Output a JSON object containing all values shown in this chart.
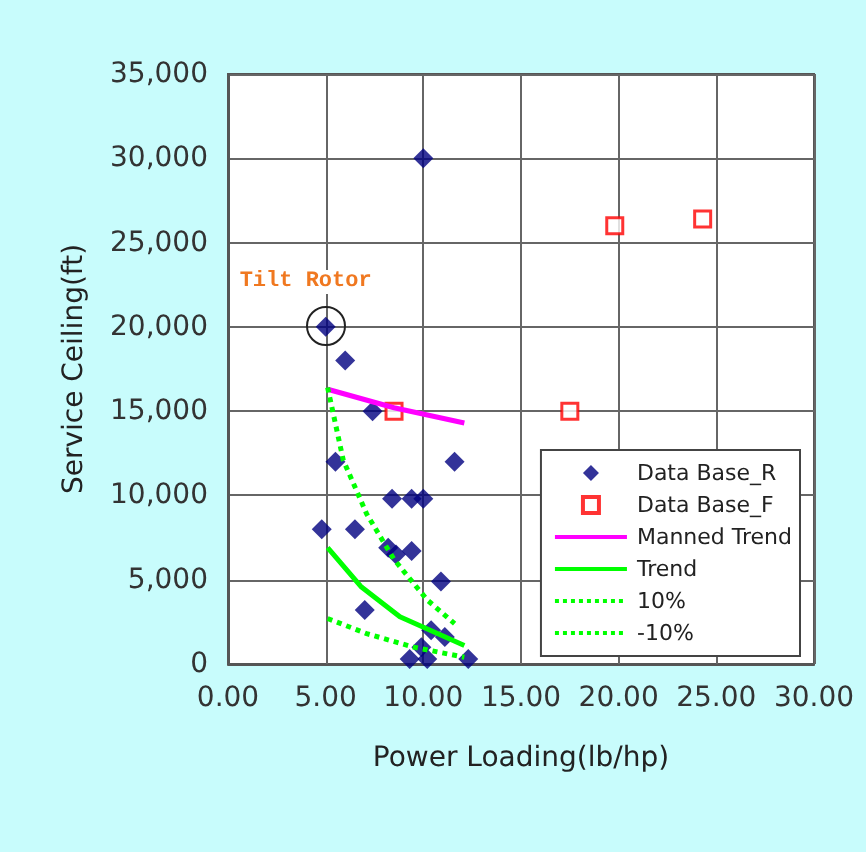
{
  "chart_data": {
    "type": "scatter",
    "xlabel": "Power Loading(lb/hp)",
    "ylabel": "Service Ceiling(ft)",
    "xlim": [
      0,
      30
    ],
    "xticks": [
      {
        "value": 0,
        "label": "0.00"
      },
      {
        "value": 5,
        "label": "5.00"
      },
      {
        "value": 10,
        "label": "10.00"
      },
      {
        "value": 15,
        "label": "15.00"
      },
      {
        "value": 20,
        "label": "20.00"
      },
      {
        "value": 25,
        "label": "25.00"
      },
      {
        "value": 30,
        "label": "30.00"
      }
    ],
    "ylim": [
      0,
      35000
    ],
    "yticks": [
      {
        "value": 0,
        "label": "0"
      },
      {
        "value": 5000,
        "label": "5,000"
      },
      {
        "value": 10000,
        "label": "10,000"
      },
      {
        "value": 15000,
        "label": "15,000"
      },
      {
        "value": 20000,
        "label": "20,000"
      },
      {
        "value": 25000,
        "label": "25,000"
      },
      {
        "value": 30000,
        "label": "30,000"
      },
      {
        "value": 35000,
        "label": "35,000"
      }
    ],
    "grid": true,
    "legend": "bottom right",
    "series": [
      {
        "name": "Data Base_R",
        "marker": "diamond",
        "color": "#000080",
        "x": [
          5.0,
          6.0,
          10.0,
          7.4,
          11.6,
          5.5,
          8.4,
          9.4,
          10.0,
          4.8,
          6.5,
          8.2,
          8.6,
          9.4,
          10.9,
          7.0,
          10.4,
          11.1,
          9.9,
          9.3,
          10.2,
          12.3
        ],
        "values": [
          20000,
          18000,
          30000,
          15000,
          12000,
          12000,
          9800,
          9800,
          9800,
          8000,
          8000,
          6900,
          6500,
          6700,
          4900,
          3200,
          2000,
          1600,
          1000,
          300,
          300,
          300
        ]
      },
      {
        "name": "Data Base_F",
        "marker": "square",
        "color": "#ff0000",
        "x": [
          8.5,
          17.5,
          19.8,
          24.3
        ],
        "values": [
          15000,
          15000,
          26000,
          26400
        ]
      },
      {
        "name": "Manned Trend",
        "type": "line",
        "line_style": "solid",
        "color": "#ff00ff",
        "x": [
          5.1,
          8.5,
          12.1
        ],
        "values": [
          16300,
          15200,
          14300
        ]
      },
      {
        "name": "Trend",
        "type": "line",
        "line_style": "solid",
        "color": "#00ff00",
        "x": [
          5.1,
          6.8,
          8.8,
          12.1
        ],
        "values": [
          6900,
          4600,
          2800,
          1100
        ]
      },
      {
        "name": "10%",
        "type": "line",
        "line_style": "dotted",
        "color": "#00ff00",
        "x": [
          5.1,
          5.9,
          7.1,
          8.5,
          10.2,
          11.6
        ],
        "values": [
          16400,
          12100,
          8900,
          6200,
          3800,
          2400
        ]
      },
      {
        "name": "-10%",
        "type": "line",
        "line_style": "dotted",
        "color": "#00ff00",
        "x": [
          5.1,
          7.1,
          9.5,
          12.1
        ],
        "values": [
          2700,
          1800,
          1000,
          400
        ]
      }
    ],
    "annotations": [
      {
        "text": "Tilt Rotor",
        "x": 5.0,
        "y": 20000
      }
    ]
  }
}
